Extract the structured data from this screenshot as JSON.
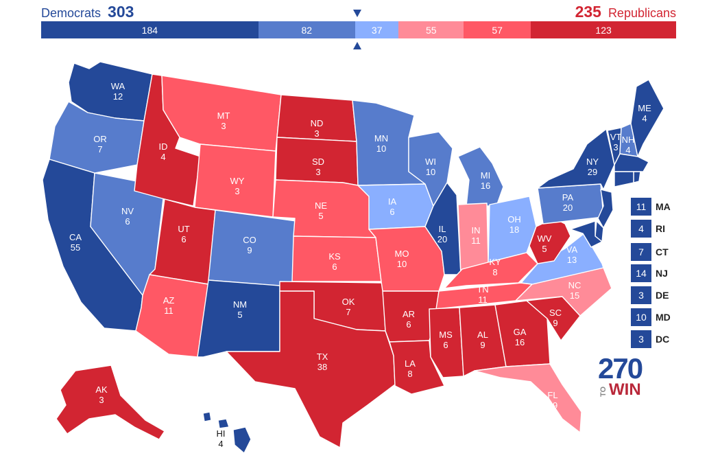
{
  "header": {
    "dem_label": "Democrats",
    "dem_total": "303",
    "rep_total": "235",
    "rep_label": "Republicans"
  },
  "tally_segments": [
    {
      "label": "184",
      "value": 184,
      "color": "#244999",
      "category": "safe-dem"
    },
    {
      "label": "82",
      "value": 82,
      "color": "#577ccc",
      "category": "likely-dem"
    },
    {
      "label": "37",
      "value": 37,
      "color": "#8aafff",
      "category": "lean-dem"
    },
    {
      "label": "55",
      "value": 55,
      "color": "#ff8b98",
      "category": "lean-rep"
    },
    {
      "label": "57",
      "value": 57,
      "color": "#ff5865",
      "category": "likely-rep"
    },
    {
      "label": "123",
      "value": 123,
      "color": "#d22532",
      "category": "safe-rep"
    }
  ],
  "category_colors": {
    "safe-dem": "#244999",
    "likely-dem": "#577ccc",
    "lean-dem": "#8aafff",
    "lean-rep": "#ff8b98",
    "likely-rep": "#ff5865",
    "safe-rep": "#d22532"
  },
  "states": [
    {
      "abbr": "WA",
      "ev": "12",
      "category": "safe-dem"
    },
    {
      "abbr": "OR",
      "ev": "7",
      "category": "likely-dem"
    },
    {
      "abbr": "CA",
      "ev": "55",
      "category": "safe-dem"
    },
    {
      "abbr": "NV",
      "ev": "6",
      "category": "likely-dem"
    },
    {
      "abbr": "ID",
      "ev": "4",
      "category": "safe-rep"
    },
    {
      "abbr": "MT",
      "ev": "3",
      "category": "likely-rep"
    },
    {
      "abbr": "WY",
      "ev": "3",
      "category": "likely-rep"
    },
    {
      "abbr": "UT",
      "ev": "6",
      "category": "safe-rep"
    },
    {
      "abbr": "AZ",
      "ev": "11",
      "category": "likely-rep"
    },
    {
      "abbr": "CO",
      "ev": "9",
      "category": "likely-dem"
    },
    {
      "abbr": "NM",
      "ev": "5",
      "category": "safe-dem"
    },
    {
      "abbr": "ND",
      "ev": "3",
      "category": "safe-rep"
    },
    {
      "abbr": "SD",
      "ev": "3",
      "category": "safe-rep"
    },
    {
      "abbr": "NE",
      "ev": "5",
      "category": "likely-rep"
    },
    {
      "abbr": "KS",
      "ev": "6",
      "category": "likely-rep"
    },
    {
      "abbr": "OK",
      "ev": "7",
      "category": "safe-rep"
    },
    {
      "abbr": "TX",
      "ev": "38",
      "category": "safe-rep"
    },
    {
      "abbr": "MN",
      "ev": "10",
      "category": "likely-dem"
    },
    {
      "abbr": "IA",
      "ev": "6",
      "category": "lean-dem"
    },
    {
      "abbr": "MO",
      "ev": "10",
      "category": "likely-rep"
    },
    {
      "abbr": "AR",
      "ev": "6",
      "category": "safe-rep"
    },
    {
      "abbr": "LA",
      "ev": "8",
      "category": "safe-rep"
    },
    {
      "abbr": "WI",
      "ev": "10",
      "category": "likely-dem"
    },
    {
      "abbr": "IL",
      "ev": "20",
      "category": "safe-dem"
    },
    {
      "abbr": "MI",
      "ev": "16",
      "category": "likely-dem"
    },
    {
      "abbr": "IN",
      "ev": "11",
      "category": "lean-rep"
    },
    {
      "abbr": "OH",
      "ev": "18",
      "category": "lean-dem"
    },
    {
      "abbr": "KY",
      "ev": "8",
      "category": "likely-rep"
    },
    {
      "abbr": "TN",
      "ev": "11",
      "category": "likely-rep"
    },
    {
      "abbr": "MS",
      "ev": "6",
      "category": "safe-rep"
    },
    {
      "abbr": "AL",
      "ev": "9",
      "category": "safe-rep"
    },
    {
      "abbr": "GA",
      "ev": "16",
      "category": "safe-rep"
    },
    {
      "abbr": "FL",
      "ev": "29",
      "category": "lean-rep"
    },
    {
      "abbr": "SC",
      "ev": "9",
      "category": "safe-rep"
    },
    {
      "abbr": "NC",
      "ev": "15",
      "category": "lean-rep"
    },
    {
      "abbr": "VA",
      "ev": "13",
      "category": "lean-dem"
    },
    {
      "abbr": "WV",
      "ev": "5",
      "category": "safe-rep"
    },
    {
      "abbr": "PA",
      "ev": "20",
      "category": "likely-dem"
    },
    {
      "abbr": "NY",
      "ev": "29",
      "category": "safe-dem"
    },
    {
      "abbr": "VT",
      "ev": "3",
      "category": "safe-dem"
    },
    {
      "abbr": "NH",
      "ev": "4",
      "category": "likely-dem"
    },
    {
      "abbr": "ME",
      "ev": "4",
      "category": "safe-dem"
    },
    {
      "abbr": "AK",
      "ev": "3",
      "category": "safe-rep"
    },
    {
      "abbr": "HI",
      "ev": "4",
      "category": "safe-dem"
    }
  ],
  "small_states": [
    {
      "ev": "11",
      "abbr": "MA",
      "category": "safe-dem"
    },
    {
      "ev": "4",
      "abbr": "RI",
      "category": "safe-dem"
    },
    {
      "ev": "7",
      "abbr": "CT",
      "category": "safe-dem"
    },
    {
      "ev": "14",
      "abbr": "NJ",
      "category": "safe-dem"
    },
    {
      "ev": "3",
      "abbr": "DE",
      "category": "safe-dem"
    },
    {
      "ev": "10",
      "abbr": "MD",
      "category": "safe-dem"
    },
    {
      "ev": "3",
      "abbr": "DC",
      "category": "safe-dem"
    }
  ],
  "logo": {
    "number": "270",
    "to": "TO",
    "win": "WIN"
  }
}
